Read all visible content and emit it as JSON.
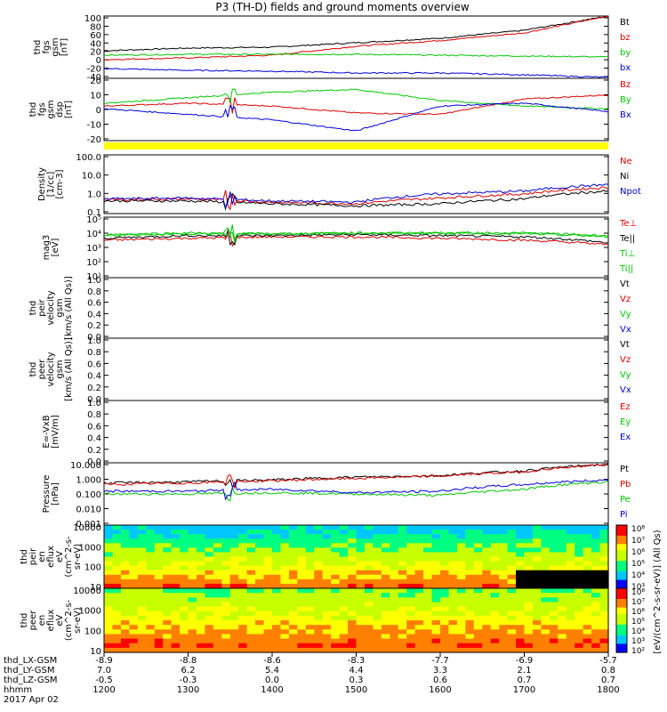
{
  "title": "P3 (TH-D) fields and ground moments overview",
  "colors": {
    "black": "#000000",
    "red": "#e00000",
    "green": "#00c800",
    "blue": "#0000e0",
    "yellow": "#ffff00"
  },
  "xaxis": {
    "ticks": [
      1200,
      1300,
      1400,
      1500,
      1600,
      1700,
      1800
    ],
    "row_labels": [
      "thd_LX-GSM",
      "thd_LY-GSM",
      "thd_LZ-GSM",
      "hhmm",
      "2017 Apr 02"
    ],
    "rows": [
      [
        "-8.9",
        "-8.8",
        "-8.6",
        "-8.3",
        "-7.7",
        "-6.9",
        "-5.7"
      ],
      [
        "7.0",
        "6.2",
        "5.4",
        "4.4",
        "3.3",
        "2.1",
        "0.8"
      ],
      [
        "-0.5",
        "-0.3",
        "0.0",
        "0.3",
        "0.6",
        "0.7",
        "0.7"
      ],
      [
        "1200",
        "1300",
        "1400",
        "1500",
        "1600",
        "1700",
        "1800"
      ]
    ]
  },
  "panels": [
    {
      "ylabel": [
        "thd",
        "fgs",
        "gsm",
        "[nT]"
      ],
      "ticks": [
        "100",
        "80",
        "60",
        "40",
        "20",
        "0",
        "-20",
        "-40"
      ],
      "legend": [
        {
          "t": "Bt",
          "c": "black"
        },
        {
          "t": "bz",
          "c": "red"
        },
        {
          "t": "by",
          "c": "green"
        },
        {
          "t": "bx",
          "c": "blue"
        }
      ]
    },
    {
      "ylabel": [
        "thd",
        "fgs",
        "gsm",
        "dsp",
        "[nT]"
      ],
      "ticks": [
        "20",
        "10",
        "0",
        "-10",
        "-20"
      ],
      "legend": [
        {
          "t": "Bz",
          "c": "red"
        },
        {
          "t": "By",
          "c": "green"
        },
        {
          "t": "Bx",
          "c": "blue"
        }
      ]
    },
    {
      "ylabel": [
        "Density",
        "[1/cc]",
        "[cm-3]"
      ],
      "ticks": [
        "100.0",
        "10.0",
        "1.0",
        "0.1"
      ],
      "legend": [
        {
          "t": "Ne",
          "c": "red"
        },
        {
          "t": "Ni",
          "c": "black"
        },
        {
          "t": "Npot",
          "c": "blue"
        }
      ]
    },
    {
      "ylabel": [
        "mag3",
        "[eV]"
      ],
      "ticks": [
        "10⁵",
        "10⁴",
        "10³",
        "10²",
        "10¹"
      ],
      "legend": [
        {
          "t": "Te⊥",
          "c": "red"
        },
        {
          "t": "Te||",
          "c": "black"
        },
        {
          "t": "Ti⊥",
          "c": "green"
        },
        {
          "t": "Ti||",
          "c": "green"
        }
      ]
    },
    {
      "ylabel": [
        "thd",
        "peir",
        "velocity",
        "gsm",
        "[km/s (All Qs)]"
      ],
      "ticks": [
        "1.0",
        "0.8",
        "0.6",
        "0.4",
        "0.2",
        "0.0"
      ],
      "legend": [
        {
          "t": "Vt",
          "c": "black"
        },
        {
          "t": "Vz",
          "c": "red"
        },
        {
          "t": "Vy",
          "c": "green"
        },
        {
          "t": "Vx",
          "c": "blue"
        }
      ]
    },
    {
      "ylabel": [
        "thd",
        "peer",
        "velocity",
        "gsm",
        "[km/s (All Qs)]"
      ],
      "ticks": [
        "1.0",
        "0.8",
        "0.6",
        "0.4",
        "0.2",
        "0.0"
      ],
      "legend": [
        {
          "t": "Vt",
          "c": "black"
        },
        {
          "t": "Vz",
          "c": "red"
        },
        {
          "t": "Vy",
          "c": "green"
        },
        {
          "t": "Vx",
          "c": "blue"
        }
      ]
    },
    {
      "ylabel": [
        "E=-VxB",
        "[mV/m]"
      ],
      "ticks": [
        "1.0",
        "0.8",
        "0.6",
        "0.4",
        "0.2",
        "0.0"
      ],
      "legend": [
        {
          "t": "Ez",
          "c": "red"
        },
        {
          "t": "Ey",
          "c": "green"
        },
        {
          "t": "Ex",
          "c": "blue"
        }
      ]
    },
    {
      "ylabel": [
        "Pressure",
        "[nPa]"
      ],
      "ticks": [
        "10.000",
        "1.000",
        "0.100",
        "0.010",
        "0.001"
      ],
      "legend": [
        {
          "t": "Pt",
          "c": "black"
        },
        {
          "t": "Pb",
          "c": "red"
        },
        {
          "t": "Pe",
          "c": "green"
        },
        {
          "t": "Pi",
          "c": "blue"
        }
      ]
    },
    {
      "ylabel": [
        "thd",
        "peir",
        "en",
        "eflux",
        "eV",
        "(cm^2-s-",
        "sr-eV)"
      ],
      "ticks": [
        "10000",
        "1000",
        "100",
        "10"
      ],
      "legend": []
    },
    {
      "ylabel": [
        "thd",
        "peer",
        "en",
        "eflux",
        "eV",
        "(cm^2-s-",
        "sr-eV)"
      ],
      "ticks": [
        "10000",
        "1000",
        "100",
        "10"
      ],
      "legend": []
    }
  ],
  "colorbar": {
    "ticks_top": [
      "10⁸",
      "10⁷",
      "10⁶",
      "10⁵",
      "10⁴",
      "10³"
    ],
    "ticks_bot": [
      "10⁸",
      "10⁷",
      "10⁶",
      "10⁵",
      "10⁴",
      "10³",
      "10²"
    ],
    "label": "[eV/(cm^2-s-sr-eV)] (All Qs)"
  },
  "chart_data": {
    "type": "line",
    "title": "P3 (TH-D) fields and ground moments overview",
    "x_time_hhmm": [
      "1200",
      "1300",
      "1400",
      "1500",
      "1600",
      "1700",
      "1800"
    ],
    "panels": [
      {
        "name": "fgs gsm",
        "units": "nT",
        "ylim": [
          -40,
          100
        ],
        "series": [
          {
            "name": "Bt",
            "values": [
              22,
              28,
              30,
              40,
              50,
              68,
              100
            ]
          },
          {
            "name": "bz",
            "values": [
              2,
              6,
              12,
              32,
              45,
              62,
              100
            ]
          },
          {
            "name": "by",
            "values": [
              12,
              14,
              14,
              14,
              12,
              10,
              8
            ]
          },
          {
            "name": "bx",
            "values": [
              -18,
              -22,
              -24,
              -28,
              -28,
              -32,
              -38
            ]
          }
        ]
      },
      {
        "name": "fgs gsm dsp",
        "units": "nT",
        "ylim": [
          -25,
          20
        ],
        "series": [
          {
            "name": "Bz",
            "values": [
              0,
              2,
              0,
              -5,
              -6,
              5,
              8
            ]
          },
          {
            "name": "By",
            "values": [
              2,
              6,
              10,
              12,
              4,
              0,
              -2
            ]
          },
          {
            "name": "Bx",
            "values": [
              -2,
              -6,
              -10,
              -18,
              0,
              2,
              -4
            ]
          }
        ]
      },
      {
        "name": "Density",
        "units": "1/cc",
        "scale": "log",
        "ylim": [
          0.05,
          200
        ],
        "series": [
          {
            "name": "Ne",
            "values": [
              0.35,
              0.4,
              0.25,
              0.2,
              0.45,
              0.8,
              2.0
            ]
          },
          {
            "name": "Ni",
            "values": [
              0.3,
              0.3,
              0.2,
              0.15,
              0.2,
              0.4,
              1.2
            ]
          },
          {
            "name": "Npot",
            "values": [
              0.4,
              0.45,
              0.3,
              0.25,
              0.8,
              1.2,
              3.0
            ]
          }
        ]
      },
      {
        "name": "mag3",
        "units": "eV",
        "scale": "log",
        "ylim": [
          10,
          100000
        ],
        "series": [
          {
            "name": "Te⊥",
            "values": [
              3000,
              4000,
              5000,
              5000,
              4000,
              3000,
              1500
            ]
          },
          {
            "name": "Te||",
            "values": [
              4000,
              6000,
              6000,
              7000,
              6000,
              5000,
              2000
            ]
          },
          {
            "name": "Ti⊥",
            "values": [
              6000,
              8000,
              8000,
              9000,
              9000,
              8000,
              5000
            ]
          },
          {
            "name": "Ti||",
            "values": [
              7000,
              9000,
              8000,
              9000,
              9000,
              9000,
              6000
            ]
          }
        ]
      },
      {
        "name": "Pressure",
        "units": "nPa",
        "scale": "log",
        "ylim": [
          0.001,
          10
        ],
        "series": [
          {
            "name": "Pt",
            "values": [
              0.5,
              0.6,
              0.8,
              1.2,
              1.5,
              3.0,
              8.0
            ]
          },
          {
            "name": "Pb",
            "values": [
              0.4,
              0.5,
              0.7,
              1.0,
              1.4,
              2.6,
              7.5
            ]
          },
          {
            "name": "Pe",
            "values": [
              0.1,
              0.1,
              0.12,
              0.1,
              0.08,
              0.2,
              0.6
            ]
          },
          {
            "name": "Pi",
            "values": [
              0.15,
              0.15,
              0.2,
              0.12,
              0.15,
              0.4,
              0.8
            ]
          }
        ]
      }
    ]
  }
}
